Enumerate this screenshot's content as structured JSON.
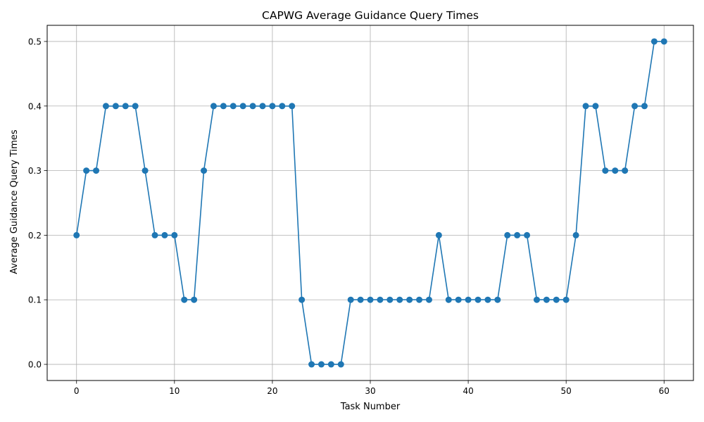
{
  "chart_data": {
    "type": "line",
    "title": "CAPWG Average Guidance Query Times",
    "xlabel": "Task Number",
    "ylabel": "Average Guidance Query Times",
    "x": [
      0,
      1,
      2,
      3,
      4,
      5,
      6,
      7,
      8,
      9,
      10,
      11,
      12,
      13,
      14,
      15,
      16,
      17,
      18,
      19,
      20,
      21,
      22,
      23,
      24,
      25,
      26,
      27,
      28,
      29,
      30,
      31,
      32,
      33,
      34,
      35,
      36,
      37,
      38,
      39,
      40,
      41,
      42,
      43,
      44,
      45,
      46,
      47,
      48,
      49,
      50,
      51,
      52,
      53,
      54,
      55,
      56,
      57,
      58,
      59,
      60
    ],
    "series": [
      {
        "values": [
          0.2,
          0.3,
          0.3,
          0.4,
          0.4,
          0.4,
          0.4,
          0.3,
          0.2,
          0.2,
          0.2,
          0.1,
          0.1,
          0.3,
          0.4,
          0.4,
          0.4,
          0.4,
          0.4,
          0.4,
          0.4,
          0.4,
          0.4,
          0.1,
          0.0,
          0.0,
          0.0,
          0.0,
          0.1,
          0.1,
          0.1,
          0.1,
          0.1,
          0.1,
          0.1,
          0.1,
          0.1,
          0.2,
          0.1,
          0.1,
          0.1,
          0.1,
          0.1,
          0.1,
          0.2,
          0.2,
          0.2,
          0.1,
          0.1,
          0.1,
          0.1,
          0.2,
          0.4,
          0.4,
          0.3,
          0.3,
          0.3,
          0.4,
          0.4,
          0.5,
          0.5
        ],
        "color": "#1f77b4",
        "marker": "circle"
      }
    ],
    "xlim": [
      -3,
      63
    ],
    "ylim": [
      -0.025,
      0.525
    ],
    "xticks": [
      "0",
      "10",
      "20",
      "30",
      "40",
      "50",
      "60"
    ],
    "yticks": [
      "0.0",
      "0.1",
      "0.2",
      "0.3",
      "0.4",
      "0.5"
    ],
    "grid": true,
    "legend": false
  }
}
